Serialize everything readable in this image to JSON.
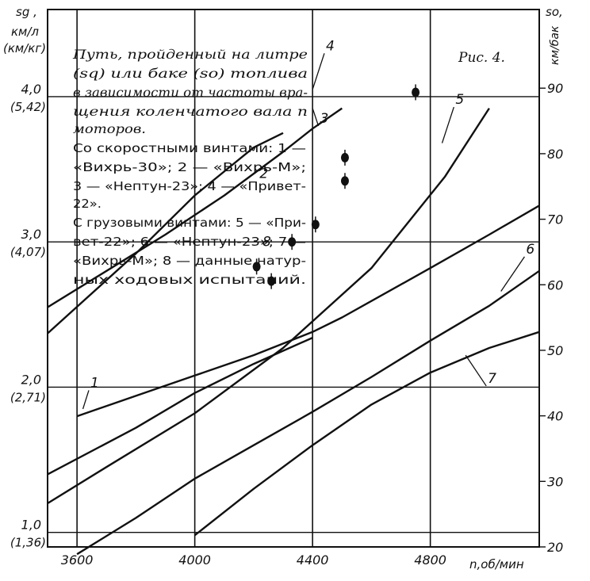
{
  "chart_data": {
    "type": "line",
    "figure_label": "Рис. 4.",
    "caption_lines": [
      "Путь, пройденный на литре",
      "(sq) или баке (so) топлива",
      "в зависимости от частоты вра-",
      "щения коленчатого вала n",
      "моторов.",
      "Со скоростными винтами: 1 —",
      "«Вихрь-30»;    2 — «Вихрь-М»;",
      "3 — «Нептун-23»; 4 — «Привет-",
      "22».",
      "С грузовыми винтами: 5 — «При-",
      "вет-22»; 6 — «Нептун-23»; 7 —",
      "«Вихрь-М»; 8 — данные натур-",
      "ных ходовых испытаний."
    ],
    "left_axis": {
      "label_line1": "sg ,",
      "label_line2": "км/л",
      "label_line3": "(км/кг)",
      "ticks": [
        {
          "value": 1.0,
          "label": "1,0",
          "alt": "(1,36)"
        },
        {
          "value": 2.0,
          "label": "2,0",
          "alt": "(2,71)"
        },
        {
          "value": 3.0,
          "label": "3,0",
          "alt": "(4,07)"
        },
        {
          "value": 4.0,
          "label": "4,0",
          "alt": "(5,42)"
        }
      ],
      "range": [
        0.9,
        4.6
      ]
    },
    "right_axis": {
      "label_line1": "so,",
      "label_line2": "км/бак",
      "ticks": [
        {
          "value": 20,
          "label": "20"
        },
        {
          "value": 30,
          "label": "30"
        },
        {
          "value": 40,
          "label": "40"
        },
        {
          "value": 50,
          "label": "50"
        },
        {
          "value": 60,
          "label": "60"
        },
        {
          "value": 70,
          "label": "70"
        },
        {
          "value": 80,
          "label": "80"
        },
        {
          "value": 90,
          "label": "90"
        }
      ],
      "range": [
        20,
        102
      ]
    },
    "x_axis": {
      "label": "n,об/мин",
      "ticks": [
        3600,
        4000,
        4400,
        4800
      ],
      "range": [
        3500,
        5170
      ]
    },
    "grid": true,
    "series": [
      {
        "name": "1",
        "x": [
          3600,
          3800,
          4000,
          4200,
          4400,
          4500,
          4800,
          5000,
          5170
        ],
        "y": [
          1.8,
          1.94,
          2.08,
          2.22,
          2.38,
          2.48,
          2.82,
          3.05,
          3.25
        ]
      },
      {
        "name": "2",
        "x": [
          3500,
          3800,
          4000,
          4200,
          4400
        ],
        "y": [
          1.4,
          1.72,
          1.96,
          2.16,
          2.34
        ]
      },
      {
        "name": "3",
        "x": [
          3500,
          3700,
          3900,
          4100,
          4300,
          4400,
          4500
        ],
        "y": [
          2.55,
          2.8,
          3.05,
          3.32,
          3.62,
          3.78,
          3.92
        ]
      },
      {
        "name": "4",
        "x": [
          3500,
          3800,
          4000,
          4200,
          4300
        ],
        "y": [
          2.37,
          2.92,
          3.32,
          3.65,
          3.75
        ]
      },
      {
        "name": "5",
        "x": [
          3500,
          3700,
          4000,
          4300,
          4600,
          4850,
          5000
        ],
        "y": [
          1.2,
          1.45,
          1.82,
          2.27,
          2.82,
          3.45,
          3.92
        ]
      },
      {
        "name": "6",
        "x": [
          3600,
          3800,
          4000,
          4200,
          4400,
          4600,
          4800,
          5000,
          5170
        ],
        "y": [
          0.85,
          1.1,
          1.37,
          1.6,
          1.83,
          2.07,
          2.32,
          2.56,
          2.8
        ]
      },
      {
        "name": "7",
        "x": [
          4000,
          4200,
          4400,
          4600,
          4800,
          5000,
          5170
        ],
        "y": [
          0.98,
          1.3,
          1.6,
          1.88,
          2.1,
          2.27,
          2.38
        ]
      }
    ],
    "points_8": [
      {
        "x": 4210,
        "y": 2.83
      },
      {
        "x": 4260,
        "y": 2.73
      },
      {
        "x": 4330,
        "y": 3.0
      },
      {
        "x": 4410,
        "y": 3.12
      },
      {
        "x": 4510,
        "y": 3.42
      },
      {
        "x": 4510,
        "y": 3.58
      },
      {
        "x": 4750,
        "y": 4.03
      }
    ]
  }
}
